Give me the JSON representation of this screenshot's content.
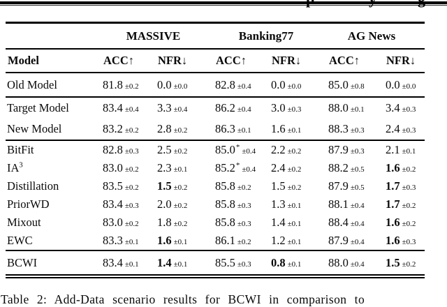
{
  "clipped_top": {
    "fragments": [
      "p",
      "y",
      "g"
    ]
  },
  "caption": {
    "text": "Table 2: Add-Data scenario results for BCWI in comparison to"
  },
  "table": {
    "model_header": "Model",
    "group_headers": [
      "MASSIVE",
      "Banking77",
      "AG News"
    ],
    "metric_headers": [
      "ACC↑",
      "NFR↓",
      "ACC↑",
      "NFR↓",
      "ACC↑",
      "NFR↓"
    ],
    "sections": [
      {
        "name": "old",
        "rows": [
          {
            "label": "Old Model",
            "cells": [
              {
                "v": "81.8",
                "e": "±0.2"
              },
              {
                "v": "0.0",
                "e": "±0.0"
              },
              {
                "v": "82.8",
                "e": "±0.4"
              },
              {
                "v": "0.0",
                "e": "±0.0"
              },
              {
                "v": "85.0",
                "e": "±0.8"
              },
              {
                "v": "0.0",
                "e": "±0.0"
              }
            ]
          }
        ]
      },
      {
        "name": "base",
        "rows": [
          {
            "label": "Target Model",
            "cells": [
              {
                "v": "83.4",
                "e": "±0.4"
              },
              {
                "v": "3.3",
                "e": "±0.4"
              },
              {
                "v": "86.2",
                "e": "±0.4"
              },
              {
                "v": "3.0",
                "e": "±0.3"
              },
              {
                "v": "88.0",
                "e": "±0.1"
              },
              {
                "v": "3.4",
                "e": "±0.3"
              }
            ]
          },
          {
            "label": "New Model",
            "cells": [
              {
                "v": "83.2",
                "e": "±0.2"
              },
              {
                "v": "2.8",
                "e": "±0.2"
              },
              {
                "v": "86.3",
                "e": "±0.1"
              },
              {
                "v": "1.6",
                "e": "±0.1"
              },
              {
                "v": "88.3",
                "e": "±0.3"
              },
              {
                "v": "2.4",
                "e": "±0.3"
              }
            ]
          }
        ]
      },
      {
        "name": "methods",
        "rows": [
          {
            "label": "BitFit",
            "cells": [
              {
                "v": "82.8",
                "e": "±0.3"
              },
              {
                "v": "2.5",
                "e": "±0.2"
              },
              {
                "v": "85.0",
                "e": "±0.4",
                "star": true
              },
              {
                "v": "2.2",
                "e": "±0.2"
              },
              {
                "v": "87.9",
                "e": "±0.3"
              },
              {
                "v": "2.1",
                "e": "±0.1"
              }
            ]
          },
          {
            "label": "IA",
            "label_sup": "3",
            "cells": [
              {
                "v": "83.0",
                "e": "±0.2"
              },
              {
                "v": "2.3",
                "e": "±0.1"
              },
              {
                "v": "85.2",
                "e": "±0.4",
                "star": true
              },
              {
                "v": "2.4",
                "e": "±0.2"
              },
              {
                "v": "88.2",
                "e": "±0.5"
              },
              {
                "v": "1.6",
                "e": "±0.2",
                "bold": true
              }
            ]
          },
          {
            "label": "Distillation",
            "cells": [
              {
                "v": "83.5",
                "e": "±0.2"
              },
              {
                "v": "1.5",
                "e": "±0.2",
                "bold": true
              },
              {
                "v": "85.8",
                "e": "±0.2"
              },
              {
                "v": "1.5",
                "e": "±0.2"
              },
              {
                "v": "87.9",
                "e": "±0.5"
              },
              {
                "v": "1.7",
                "e": "±0.3",
                "bold": true
              }
            ]
          },
          {
            "label": "PriorWD",
            "cells": [
              {
                "v": "83.4",
                "e": "±0.3"
              },
              {
                "v": "2.0",
                "e": "±0.2"
              },
              {
                "v": "85.8",
                "e": "±0.3"
              },
              {
                "v": "1.3",
                "e": "±0.1"
              },
              {
                "v": "88.1",
                "e": "±0.4"
              },
              {
                "v": "1.7",
                "e": "±0.2",
                "bold": true
              }
            ]
          },
          {
            "label": "Mixout",
            "cells": [
              {
                "v": "83.0",
                "e": "±0.2"
              },
              {
                "v": "1.8",
                "e": "±0.2"
              },
              {
                "v": "85.8",
                "e": "±0.3"
              },
              {
                "v": "1.4",
                "e": "±0.1"
              },
              {
                "v": "88.4",
                "e": "±0.4"
              },
              {
                "v": "1.6",
                "e": "±0.2",
                "bold": true
              }
            ]
          },
          {
            "label": "EWC",
            "cells": [
              {
                "v": "83.3",
                "e": "±0.1"
              },
              {
                "v": "1.6",
                "e": "±0.1",
                "bold": true
              },
              {
                "v": "86.1",
                "e": "±0.2"
              },
              {
                "v": "1.2",
                "e": "±0.1"
              },
              {
                "v": "87.9",
                "e": "±0.4"
              },
              {
                "v": "1.6",
                "e": "±0.3",
                "bold": true
              }
            ]
          }
        ]
      },
      {
        "name": "final",
        "rows": [
          {
            "label": "BCWI",
            "cells": [
              {
                "v": "83.4",
                "e": "±0.1"
              },
              {
                "v": "1.4",
                "e": "±0.1",
                "bold": true
              },
              {
                "v": "85.5",
                "e": "±0.3"
              },
              {
                "v": "0.8",
                "e": "±0.1",
                "bold": true
              },
              {
                "v": "88.0",
                "e": "±0.4"
              },
              {
                "v": "1.5",
                "e": "±0.2",
                "bold": true
              }
            ]
          }
        ]
      }
    ]
  }
}
